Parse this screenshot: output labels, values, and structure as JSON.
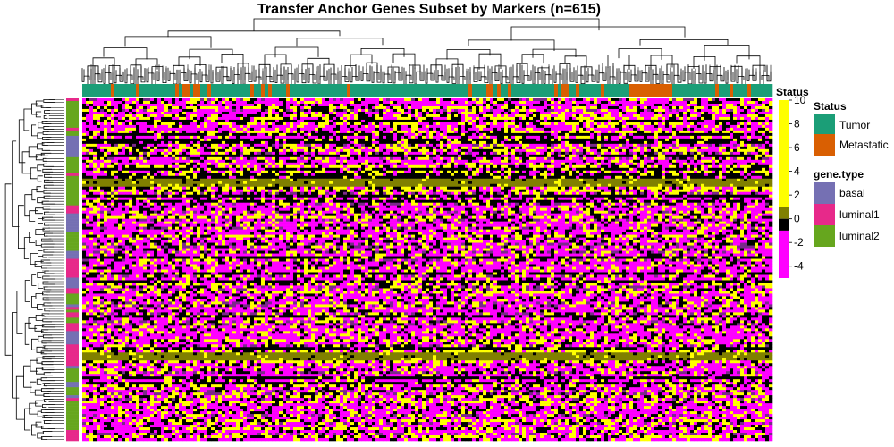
{
  "chart_data": {
    "type": "heatmap",
    "title": "Transfer Anchor Genes Subset by Markers (n=615)",
    "n_samples": 615,
    "column_annotation": {
      "name": "Status",
      "levels": [
        {
          "label": "Tumor",
          "color": "#1b9e77"
        },
        {
          "label": "Metastatic",
          "color": "#d95f02"
        }
      ]
    },
    "row_annotation": {
      "name": "gene.type",
      "levels": [
        {
          "label": "basal",
          "color": "#7570b3"
        },
        {
          "label": "luminal1",
          "color": "#e7298a"
        },
        {
          "label": "luminal2",
          "color": "#66a61e"
        }
      ]
    },
    "color_scale": {
      "title": "Status",
      "ticks": [
        "10",
        "8",
        "6",
        "4",
        "2",
        "0",
        "-2",
        "-4"
      ],
      "range": [
        -5,
        10
      ],
      "colors": {
        "low": "#ff00ff",
        "mid": "#000000",
        "near_zero": "#808000",
        "high": "#ffff00"
      }
    },
    "legends": {
      "status_title": "Status",
      "status_items": [
        "Tumor",
        "Metastatic"
      ],
      "gene_type_title": "gene.type",
      "gene_type_items": [
        "basal",
        "luminal1",
        "luminal2"
      ]
    }
  }
}
